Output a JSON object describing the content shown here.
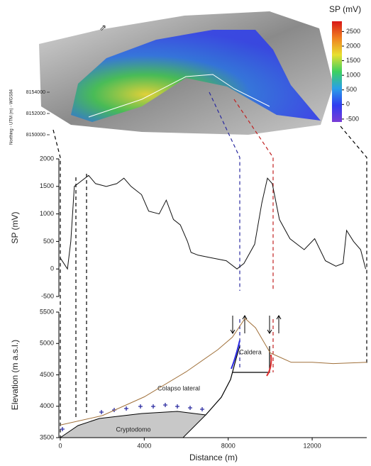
{
  "map": {
    "colorbar": {
      "title": "SP (mV)",
      "lim": [
        -600,
        2850
      ],
      "ticks": [
        2500,
        2000,
        1500,
        1000,
        500,
        0,
        -500
      ],
      "colors": [
        "#7a3cd6",
        "#2f3cf0",
        "#2aa0e8",
        "#3cd060",
        "#e8e030",
        "#f08020",
        "#d81818"
      ]
    },
    "northing_label": "Northing - UTM (m) - WGS84",
    "northing_ticks": [
      8154000,
      8152000,
      8150000
    ]
  },
  "chart_data": [
    {
      "type": "line",
      "ylabel": "SP (mV)",
      "xlim": [
        0,
        14600
      ],
      "ylim": [
        -500,
        2000
      ],
      "yticks": [
        -500,
        0,
        500,
        1000,
        1500,
        2000
      ],
      "series": [
        {
          "color": "#111111",
          "x": [
            0,
            340,
            500,
            670,
            1010,
            1350,
            1680,
            2190,
            2690,
            3030,
            3370,
            3870,
            4210,
            4710,
            5050,
            5390,
            5720,
            6060,
            6230,
            6570,
            7240,
            7910,
            8420,
            8750,
            9260,
            9600,
            9870,
            10100,
            10440,
            10940,
            11620,
            12120,
            12630,
            13130,
            13470,
            13640,
            13970,
            14310,
            14550
          ],
          "values": [
            200,
            0,
            500,
            1500,
            1600,
            1700,
            1550,
            1500,
            1550,
            1650,
            1500,
            1350,
            1050,
            1000,
            1250,
            900,
            800,
            500,
            300,
            250,
            200,
            150,
            0,
            100,
            450,
            1200,
            1650,
            1550,
            900,
            550,
            350,
            550,
            150,
            50,
            100,
            700,
            500,
            350,
            0
          ]
        }
      ]
    },
    {
      "type": "line",
      "ylabel": "Elevation (m a.s.l.)",
      "xlabel": "Distance (m)",
      "xlim": [
        0,
        14600
      ],
      "ylim": [
        3500,
        5500
      ],
      "yticks": [
        3500,
        4000,
        4500,
        5000,
        5500
      ],
      "xticks": [
        0,
        4000,
        8000,
        12000
      ],
      "annotations": [
        "Caldera",
        "Colapso lateral",
        "Cryptodomo"
      ],
      "series": [
        {
          "color": "#a0703a",
          "x": [
            0,
            2000,
            4000,
            6000,
            7500,
            8200,
            8800,
            9300,
            10000,
            11000,
            12000,
            13000,
            14600
          ],
          "values": [
            3700,
            3850,
            4150,
            4550,
            4900,
            5100,
            5400,
            5250,
            4850,
            4700,
            4700,
            4680,
            4700
          ]
        }
      ]
    }
  ]
}
